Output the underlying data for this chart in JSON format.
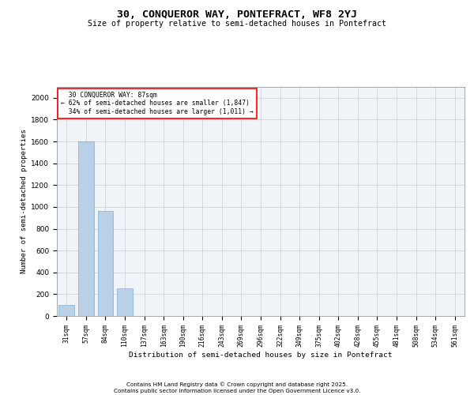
{
  "title_line1": "30, CONQUEROR WAY, PONTEFRACT, WF8 2YJ",
  "title_line2": "Size of property relative to semi-detached houses in Pontefract",
  "xlabel": "Distribution of semi-detached houses by size in Pontefract",
  "ylabel": "Number of semi-detached properties",
  "categories": [
    "31sqm",
    "57sqm",
    "84sqm",
    "110sqm",
    "137sqm",
    "163sqm",
    "190sqm",
    "216sqm",
    "243sqm",
    "269sqm",
    "296sqm",
    "322sqm",
    "349sqm",
    "375sqm",
    "402sqm",
    "428sqm",
    "455sqm",
    "481sqm",
    "508sqm",
    "534sqm",
    "561sqm"
  ],
  "values": [
    100,
    1600,
    960,
    255,
    0,
    0,
    0,
    0,
    0,
    0,
    0,
    0,
    0,
    0,
    0,
    0,
    0,
    0,
    0,
    0,
    0
  ],
  "bar_color": "#b8d0e8",
  "bar_edge_color": "#7aafd4",
  "subject_label": "30 CONQUEROR WAY: 87sqm",
  "pct_smaller": 62,
  "count_smaller": 1847,
  "pct_larger": 34,
  "count_larger": 1011,
  "ylim": [
    0,
    2100
  ],
  "yticks": [
    0,
    200,
    400,
    600,
    800,
    1000,
    1200,
    1400,
    1600,
    1800,
    2000
  ],
  "grid_color": "#cccccc",
  "background_color": "#f0f4f8",
  "footer_line1": "Contains HM Land Registry data © Crown copyright and database right 2025.",
  "footer_line2": "Contains public sector information licensed under the Open Government Licence v3.0."
}
